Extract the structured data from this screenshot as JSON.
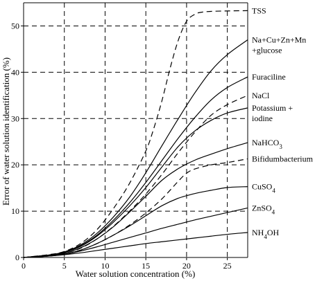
{
  "chart_data": {
    "type": "line",
    "xlabel": "Water solution concentration (%)",
    "ylabel": "Error of water solution identification (%)",
    "xlim": [
      0,
      27.5
    ],
    "ylim": [
      0,
      55
    ],
    "xticks": [
      "0",
      "5",
      "10",
      "15",
      "20",
      "25"
    ],
    "yticks": [
      "0",
      "10",
      "20",
      "30",
      "40",
      "50"
    ],
    "grid": true,
    "series": [
      {
        "name": "TSS",
        "dashed": true,
        "label_lines": [
          "TSS"
        ],
        "points": [
          [
            0,
            0
          ],
          [
            3,
            0.6
          ],
          [
            5,
            1.3
          ],
          [
            7,
            3
          ],
          [
            9,
            6
          ],
          [
            11,
            10.5
          ],
          [
            13,
            16
          ],
          [
            15,
            23
          ],
          [
            16,
            28
          ],
          [
            17,
            34
          ],
          [
            18,
            41
          ],
          [
            19,
            47
          ],
          [
            20,
            51
          ],
          [
            21,
            52.5
          ],
          [
            22,
            53
          ],
          [
            24,
            53.2
          ],
          [
            27.5,
            53.3
          ]
        ]
      },
      {
        "name": "Na+Cu+Zn+Mn+glucose",
        "dashed": false,
        "label_lines": [
          "Na+Cu+Zn+Mn",
          "+glucose"
        ],
        "points": [
          [
            0,
            0
          ],
          [
            3,
            0.5
          ],
          [
            5,
            1.2
          ],
          [
            7,
            2.7
          ],
          [
            9,
            5.2
          ],
          [
            11,
            8.7
          ],
          [
            13,
            13
          ],
          [
            15,
            18.3
          ],
          [
            17,
            24.2
          ],
          [
            19,
            30
          ],
          [
            21,
            35.5
          ],
          [
            23,
            40.3
          ],
          [
            25,
            43.8
          ],
          [
            27.5,
            47
          ]
        ]
      },
      {
        "name": "Furaciline",
        "dashed": false,
        "label_lines": [
          "Furaciline"
        ],
        "points": [
          [
            0,
            0
          ],
          [
            3,
            0.5
          ],
          [
            5,
            1.1
          ],
          [
            7,
            2.5
          ],
          [
            9,
            4.8
          ],
          [
            11,
            8
          ],
          [
            13,
            11.8
          ],
          [
            15,
            16.2
          ],
          [
            17,
            21
          ],
          [
            19,
            25.8
          ],
          [
            21,
            30.2
          ],
          [
            23,
            34
          ],
          [
            25,
            36.7
          ],
          [
            27.5,
            39
          ]
        ]
      },
      {
        "name": "NaCl",
        "dashed": true,
        "label_lines": [
          "NaCl"
        ],
        "points": [
          [
            0,
            0
          ],
          [
            3,
            0.4
          ],
          [
            5,
            0.9
          ],
          [
            7,
            2
          ],
          [
            9,
            4
          ],
          [
            11,
            6.7
          ],
          [
            13,
            10
          ],
          [
            15,
            13.7
          ],
          [
            17,
            18
          ],
          [
            19,
            22.7
          ],
          [
            21,
            27
          ],
          [
            23,
            30.7
          ],
          [
            25,
            33
          ],
          [
            27.5,
            35
          ]
        ]
      },
      {
        "name": "Potassium + iodine",
        "dashed": false,
        "label_lines": [
          "Potassium +",
          "iodine"
        ],
        "points": [
          [
            0,
            0
          ],
          [
            3,
            0.5
          ],
          [
            5,
            1.1
          ],
          [
            7,
            2.4
          ],
          [
            9,
            4.6
          ],
          [
            11,
            7.6
          ],
          [
            13,
            11.1
          ],
          [
            15,
            15.1
          ],
          [
            17,
            19.6
          ],
          [
            19,
            24
          ],
          [
            21,
            27.3
          ],
          [
            23,
            29.6
          ],
          [
            25,
            31.2
          ],
          [
            27.5,
            32.3
          ]
        ]
      },
      {
        "name": "NaHCO3",
        "dashed": false,
        "label_html": "NaHCO<tspan baseline-shift=\"sub\" font-size=\"9\">3</tspan>",
        "label_lines": [
          "NaHCO3"
        ],
        "points": [
          [
            0,
            0
          ],
          [
            3,
            0.4
          ],
          [
            5,
            0.9
          ],
          [
            7,
            2.1
          ],
          [
            9,
            4
          ],
          [
            11,
            6.6
          ],
          [
            13,
            9.8
          ],
          [
            15,
            13.2
          ],
          [
            17,
            16.7
          ],
          [
            19,
            19.2
          ],
          [
            21,
            21
          ],
          [
            23,
            22.3
          ],
          [
            25,
            23.5
          ],
          [
            27.5,
            24.8
          ]
        ]
      },
      {
        "name": "Bifidumbacterium",
        "dashed": true,
        "label_lines": [
          "Bifidumbacterium"
        ],
        "points": [
          [
            0,
            0
          ],
          [
            3,
            0.3
          ],
          [
            5,
            0.7
          ],
          [
            7,
            1.6
          ],
          [
            9,
            3
          ],
          [
            11,
            4.8
          ],
          [
            13,
            7
          ],
          [
            15,
            9.6
          ],
          [
            17,
            12.7
          ],
          [
            19,
            16.5
          ],
          [
            20,
            18.2
          ],
          [
            21,
            19.1
          ],
          [
            23,
            20
          ],
          [
            25,
            20.5
          ],
          [
            27.5,
            21.3
          ]
        ]
      },
      {
        "name": "CuSO4",
        "dashed": false,
        "label_html": "CuSO<tspan baseline-shift=\"sub\" font-size=\"9\">4</tspan>",
        "label_lines": [
          "CuSO4"
        ],
        "points": [
          [
            0,
            0
          ],
          [
            3,
            0.3
          ],
          [
            5,
            0.7
          ],
          [
            7,
            1.6
          ],
          [
            9,
            3
          ],
          [
            11,
            4.8
          ],
          [
            13,
            6.8
          ],
          [
            15,
            9
          ],
          [
            17,
            11.2
          ],
          [
            19,
            12.8
          ],
          [
            21,
            13.8
          ],
          [
            23,
            14.5
          ],
          [
            25,
            15.1
          ],
          [
            27.5,
            15.3
          ]
        ]
      },
      {
        "name": "ZnSO4",
        "dashed": false,
        "label_html": "ZnSO<tspan baseline-shift=\"sub\" font-size=\"9\">4</tspan>",
        "label_lines": [
          "ZnSO4"
        ],
        "points": [
          [
            0,
            0
          ],
          [
            3,
            0.3
          ],
          [
            5,
            0.7
          ],
          [
            7,
            1.4
          ],
          [
            9,
            2.3
          ],
          [
            11,
            3.3
          ],
          [
            13,
            4.3
          ],
          [
            15,
            5.3
          ],
          [
            17,
            6.3
          ],
          [
            19,
            7.2
          ],
          [
            21,
            8.1
          ],
          [
            23,
            8.9
          ],
          [
            25,
            9.7
          ],
          [
            27.5,
            10.7
          ]
        ]
      },
      {
        "name": "NH4OH",
        "dashed": false,
        "label_html": "NH<tspan baseline-shift=\"sub\" font-size=\"9\">4</tspan><tspan baseline-shift=\"0\">OH</tspan>",
        "label_lines": [
          "NH4OH"
        ],
        "points": [
          [
            0,
            0
          ],
          [
            3,
            0.3
          ],
          [
            5,
            0.6
          ],
          [
            7,
            1
          ],
          [
            9,
            1.5
          ],
          [
            11,
            2
          ],
          [
            13,
            2.5
          ],
          [
            15,
            3
          ],
          [
            17,
            3.4
          ],
          [
            19,
            3.8
          ],
          [
            21,
            4.2
          ],
          [
            23,
            4.6
          ],
          [
            25,
            5
          ],
          [
            27.5,
            5.4
          ]
        ]
      }
    ]
  }
}
